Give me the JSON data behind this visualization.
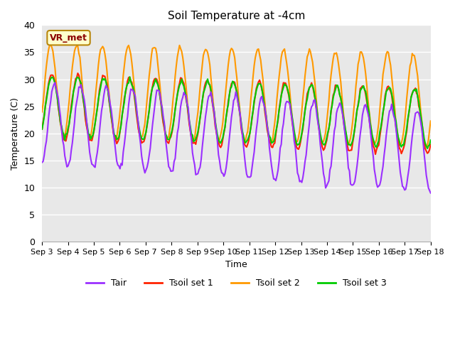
{
  "title": "Soil Temperature at -4cm",
  "xlabel": "Time",
  "ylabel": "Temperature (C)",
  "ylim": [
    0,
    40
  ],
  "yticks": [
    0,
    5,
    10,
    15,
    20,
    25,
    30,
    35,
    40
  ],
  "plot_bg_color": "#e8e8e8",
  "fig_bg_color": "#ffffff",
  "grid_color": "#ffffff",
  "annotation_label": "VR_met",
  "annotation_text_color": "#8b0000",
  "annotation_bg": "#ffffcc",
  "annotation_border": "#b8860b",
  "colors": {
    "Tair": "#9b30ff",
    "Tsoil1": "#ff2200",
    "Tsoil2": "#ff9900",
    "Tsoil3": "#00cc00"
  },
  "legend_labels": [
    "Tair",
    "Tsoil set 1",
    "Tsoil set 2",
    "Tsoil set 3"
  ],
  "x_tick_labels": [
    "Sep 3",
    "Sep 4",
    "Sep 5",
    "Sep 6",
    "Sep 7",
    "Sep 8",
    "Sep 9",
    "Sep 10",
    "Sep 11",
    "Sep 12",
    "Sep 13",
    "Sep 14",
    "Sep 15",
    "Sep 16",
    "Sep 17",
    "Sep 18"
  ],
  "n_days": 15,
  "line_width": 1.5
}
